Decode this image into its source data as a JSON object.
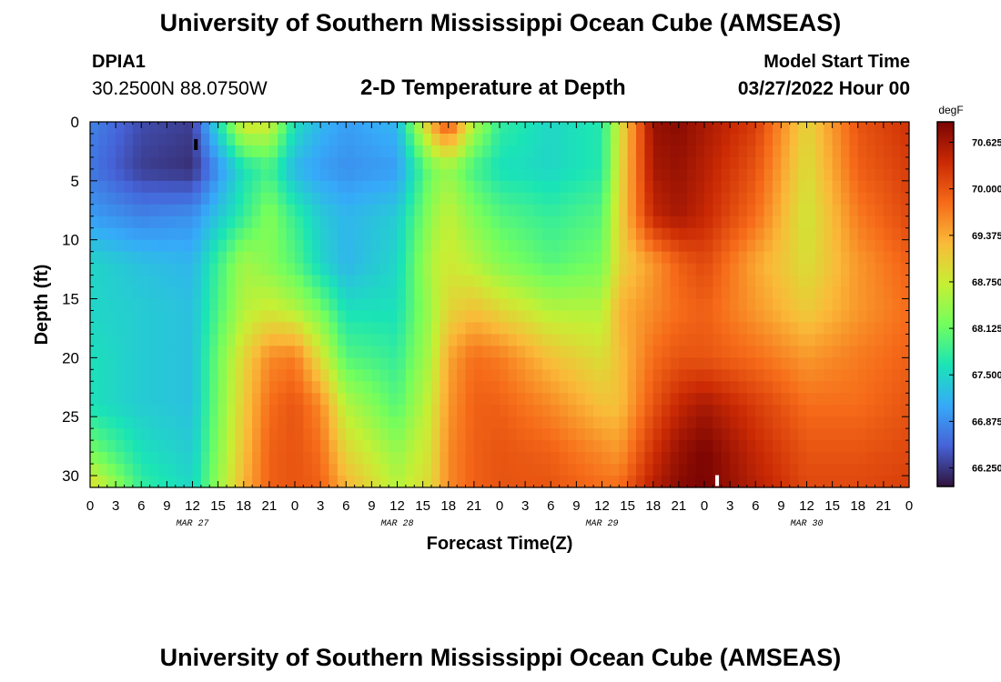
{
  "page": {
    "title": "University of Southern Mississippi Ocean Cube (AMSEAS)",
    "footer_title": "University of Southern Mississippi Ocean Cube (AMSEAS)"
  },
  "station": {
    "id": "DPIA1",
    "coords": "30.2500N  88.0750W"
  },
  "plot_title": "2-D Temperature at Depth",
  "model": {
    "label": "Model Start Time",
    "start": "03/27/2022 Hour 00"
  },
  "colors": {
    "colormap": [
      "#30123b",
      "#4662d7",
      "#36aaf9",
      "#1ae4b6",
      "#72fe5e",
      "#c7ef34",
      "#faba39",
      "#f66b19",
      "#cb2a04",
      "#7a0403"
    ]
  },
  "chart_data": {
    "type": "heatmap",
    "xlabel": "Forecast Time(Z)",
    "ylabel": "Depth (ft)",
    "xlim": [
      0,
      96
    ],
    "ylim": [
      0,
      31
    ],
    "x_tick_values": [
      0,
      3,
      6,
      9,
      12,
      15,
      18,
      21,
      24,
      27,
      30,
      33,
      36,
      39,
      42,
      45,
      48,
      51,
      54,
      57,
      60,
      63,
      66,
      69,
      72,
      75,
      78,
      81,
      84,
      87,
      90,
      93,
      96
    ],
    "x_tick_labels": [
      "0",
      "3",
      "6",
      "9",
      "12",
      "15",
      "18",
      "21",
      "0",
      "3",
      "6",
      "9",
      "12",
      "15",
      "18",
      "21",
      "0",
      "3",
      "6",
      "9",
      "12",
      "15",
      "18",
      "21",
      "0",
      "3",
      "6",
      "9",
      "12",
      "15",
      "18",
      "21",
      "0"
    ],
    "day_labels": [
      {
        "label": "MAR 27",
        "x": 12
      },
      {
        "label": "MAR 28",
        "x": 36
      },
      {
        "label": "MAR 29",
        "x": 60
      },
      {
        "label": "MAR 30",
        "x": 84
      }
    ],
    "y_tick_values": [
      0,
      5,
      10,
      15,
      20,
      25,
      30
    ],
    "y_tick_labels": [
      "0",
      "5",
      "10",
      "15",
      "20",
      "25",
      "30"
    ],
    "colorbar": {
      "units": "degF",
      "min": 66.0,
      "max": 70.9,
      "tick_values": [
        70.625,
        70.0,
        69.375,
        68.75,
        68.125,
        67.5,
        66.875,
        66.25
      ],
      "tick_labels": [
        "70.625",
        "70.000",
        "69.375",
        "68.750",
        "68.125",
        "67.500",
        "66.875",
        "66.250"
      ]
    },
    "markers": [
      {
        "x": 12.4,
        "depth": 2.0,
        "color": "#000000"
      },
      {
        "x": 73.5,
        "depth": 30.5,
        "color": "#ffffff"
      }
    ],
    "time_columns": [
      0,
      6,
      12,
      18,
      21,
      24,
      27,
      30,
      36,
      40,
      42,
      45,
      48,
      54,
      60,
      62,
      66,
      69,
      72,
      78,
      84,
      90,
      96
    ],
    "depth_rows": [
      0,
      4,
      8,
      12,
      16,
      20,
      24,
      28,
      31
    ],
    "temperature_degF": [
      [
        66.8,
        66.4,
        66.3,
        68.9,
        68.8,
        67.6,
        67.2,
        67.0,
        67.2,
        69.4,
        70.1,
        68.6,
        67.8,
        67.5,
        67.7,
        68.8,
        70.7,
        70.8,
        70.6,
        70.2,
        69.0,
        70.0,
        70.3
      ],
      [
        66.7,
        66.3,
        66.2,
        67.6,
        67.9,
        67.2,
        67.0,
        66.9,
        67.0,
        68.2,
        68.4,
        67.9,
        67.6,
        67.5,
        67.7,
        68.9,
        70.6,
        70.7,
        70.5,
        70.0,
        68.9,
        69.9,
        70.2
      ],
      [
        67.0,
        66.8,
        66.9,
        67.8,
        68.3,
        67.8,
        67.4,
        67.2,
        67.4,
        68.4,
        68.7,
        68.3,
        68.0,
        67.8,
        68.0,
        69.0,
        70.4,
        70.6,
        70.4,
        69.8,
        68.8,
        69.7,
        70.1
      ],
      [
        67.5,
        67.3,
        67.2,
        68.5,
        68.3,
        68.0,
        67.5,
        67.2,
        67.5,
        68.6,
        68.8,
        68.6,
        68.3,
        68.0,
        68.2,
        69.0,
        69.5,
        69.9,
        70.1,
        69.4,
        68.9,
        69.5,
        69.9
      ],
      [
        67.5,
        67.4,
        67.3,
        68.6,
        68.8,
        68.6,
        68.2,
        67.6,
        67.6,
        68.5,
        69.0,
        69.2,
        69.0,
        68.6,
        68.6,
        69.3,
        69.6,
        69.8,
        69.9,
        69.5,
        69.1,
        69.5,
        69.8
      ],
      [
        67.6,
        67.4,
        67.3,
        69.0,
        69.6,
        69.7,
        68.9,
        68.0,
        67.8,
        68.6,
        69.4,
        69.8,
        69.7,
        69.2,
        68.9,
        69.2,
        69.8,
        70.0,
        70.0,
        69.8,
        69.5,
        69.7,
        69.9
      ],
      [
        67.6,
        67.4,
        67.3,
        69.1,
        69.8,
        70.0,
        69.6,
        68.6,
        68.0,
        68.8,
        69.5,
        69.9,
        69.9,
        69.6,
        69.2,
        69.2,
        70.0,
        70.4,
        70.6,
        70.2,
        69.8,
        69.8,
        70.0
      ],
      [
        68.2,
        67.6,
        67.4,
        69.2,
        69.9,
        70.0,
        69.8,
        69.0,
        68.4,
        68.9,
        69.6,
        69.9,
        70.0,
        69.9,
        69.6,
        69.5,
        70.3,
        70.7,
        70.9,
        70.4,
        70.0,
        70.0,
        70.1
      ],
      [
        69.0,
        67.8,
        67.5,
        69.3,
        69.9,
        70.0,
        69.9,
        69.3,
        68.6,
        69.0,
        69.6,
        69.9,
        70.0,
        70.0,
        69.8,
        69.8,
        70.5,
        70.8,
        70.9,
        70.5,
        70.1,
        70.1,
        70.2
      ]
    ]
  }
}
